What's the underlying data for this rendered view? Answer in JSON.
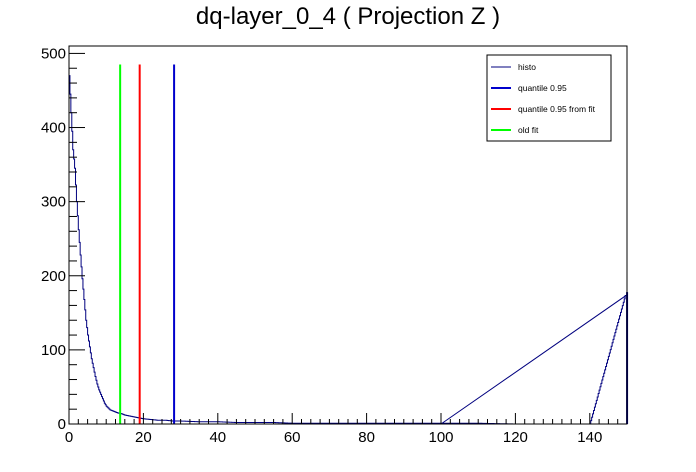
{
  "chart_data": {
    "type": "line",
    "title": "dq-layer_0_4 ( Projection Z )",
    "xlabel": "",
    "ylabel": "",
    "xlim": [
      0,
      150
    ],
    "ylim": [
      0,
      510
    ],
    "x_ticks": [
      0,
      20,
      40,
      60,
      80,
      100,
      120,
      140
    ],
    "y_ticks": [
      0,
      100,
      200,
      300,
      400,
      500
    ],
    "grid": false,
    "legend_position": "top-right",
    "series": [
      {
        "name": "histo",
        "kind": "histogram",
        "color": "#00007f",
        "bin_width": 0.25,
        "x": [
          0,
          0.5,
          1,
          1.5,
          2,
          2.5,
          3,
          3.5,
          4,
          4.5,
          5,
          5.5,
          6,
          6.5,
          7,
          7.5,
          8,
          8.5,
          9,
          9.5,
          10,
          11,
          12,
          13,
          14,
          15,
          16,
          17,
          18,
          19,
          20,
          22,
          24,
          26,
          28,
          30,
          35,
          40,
          45,
          50,
          55,
          60,
          70,
          80,
          90,
          100,
          110,
          120,
          130,
          140,
          149.75
        ],
        "values": [
          470,
          420,
          370,
          345,
          300,
          262,
          228,
          196,
          168,
          140,
          120,
          104,
          88,
          76,
          64,
          54,
          46,
          40,
          34,
          28,
          24,
          19,
          17,
          15,
          14,
          12,
          11,
          10,
          9,
          8,
          7,
          6,
          5,
          5,
          4,
          4,
          3,
          3,
          2,
          2,
          2,
          1,
          1,
          1,
          1,
          1,
          1,
          0,
          0,
          0,
          178
        ]
      },
      {
        "name": "quantile 0.95",
        "kind": "vertical-line",
        "color": "#0000cc",
        "x": 28.25,
        "y_top": 485
      },
      {
        "name": "quantile 0.95 from fit",
        "kind": "vertical-line",
        "color": "#ff0000",
        "x": 19,
        "y_top": 485
      },
      {
        "name": "old fit",
        "kind": "vertical-line",
        "color": "#00ff00",
        "x": 13.75,
        "y_top": 485
      }
    ]
  }
}
